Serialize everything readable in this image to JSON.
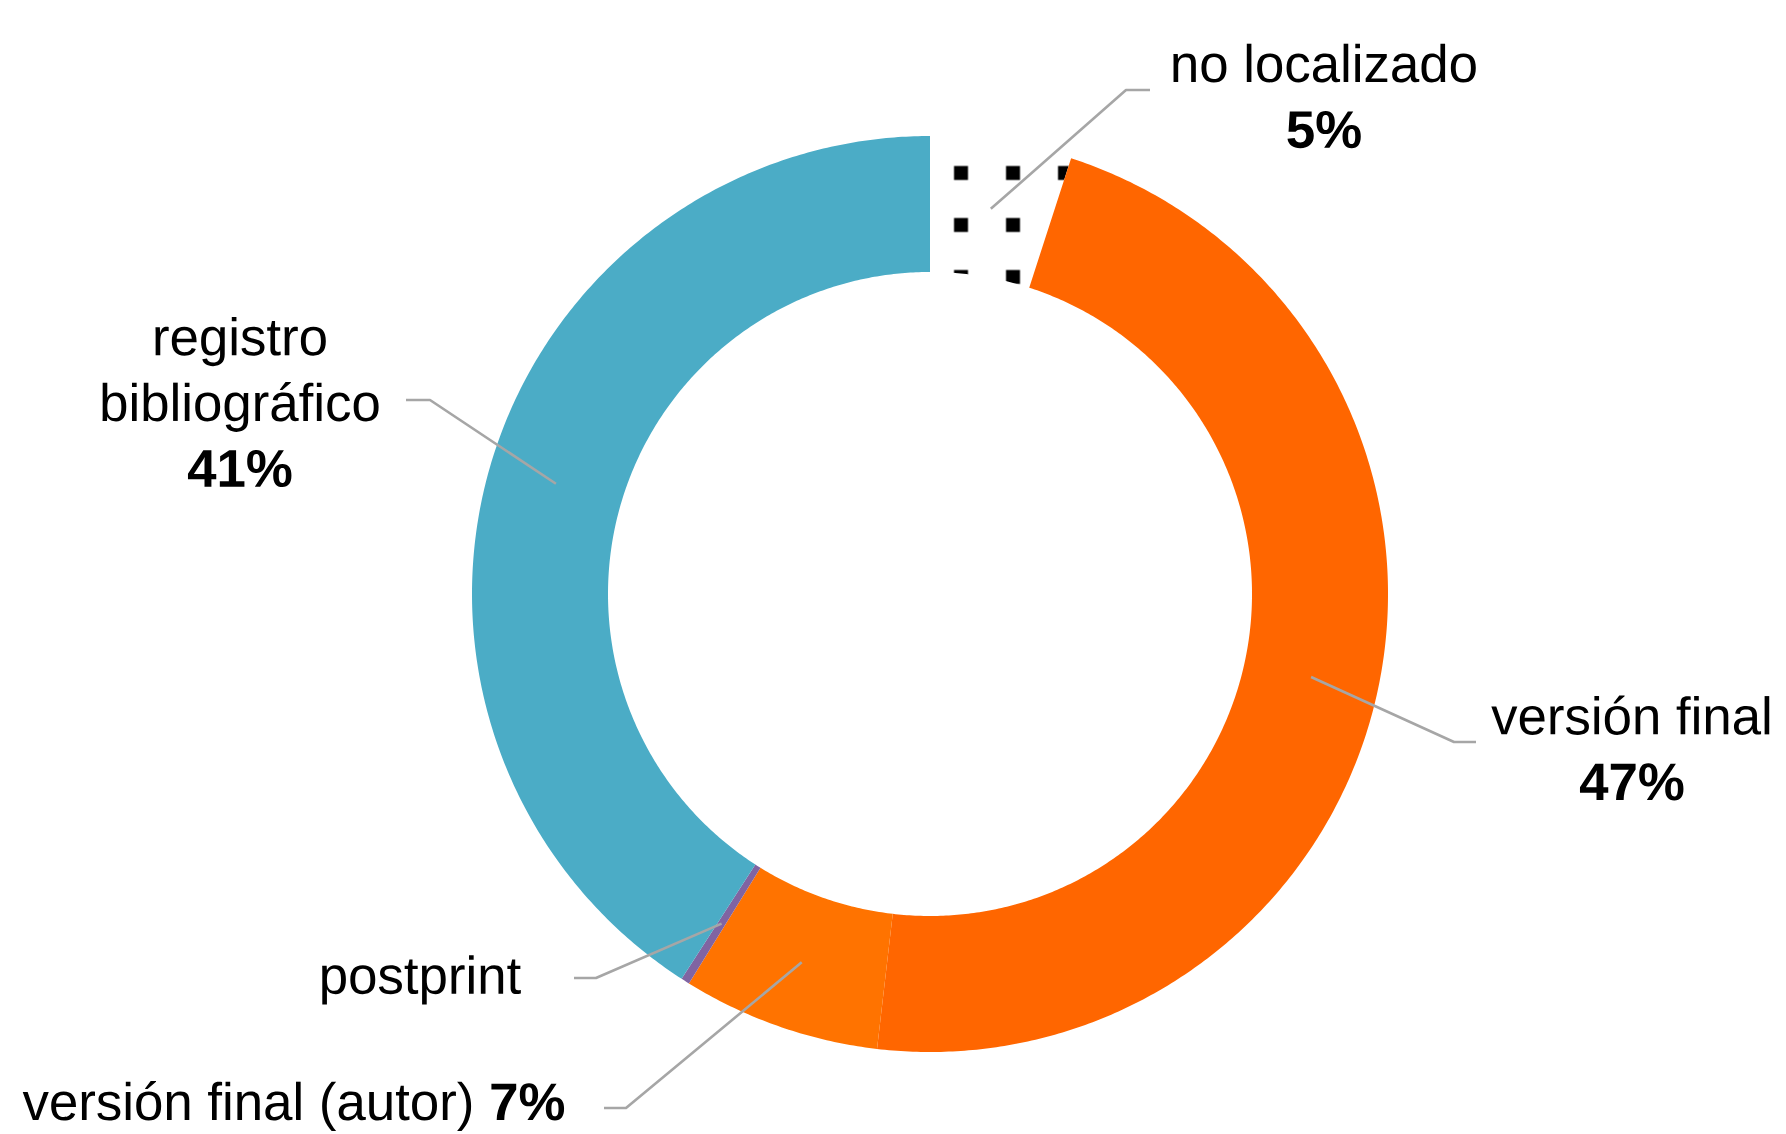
{
  "chart_data": {
    "type": "donut",
    "categories": [
      "no localizado",
      "versión final",
      "versión final (autor)",
      "postprint",
      "registro bibliográfico"
    ],
    "values": [
      5,
      47,
      7,
      0.3,
      41
    ],
    "colors": [
      "#ffffff",
      "#ff6600",
      "#ff7300",
      "#8064a2",
      "#4bacc6"
    ],
    "value_labels": [
      "5%",
      "47%",
      "7%",
      null,
      "41%"
    ]
  }
}
